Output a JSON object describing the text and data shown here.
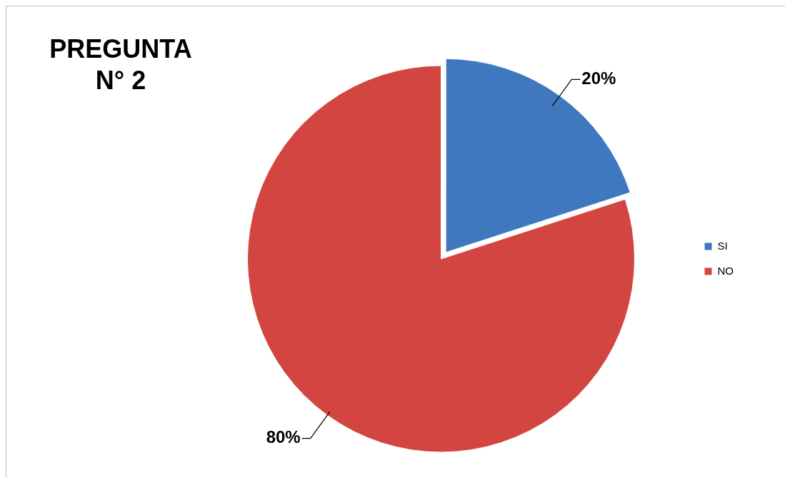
{
  "chart_data": {
    "type": "pie",
    "title": "PREGUNTA N° 2",
    "categories": [
      "SI",
      "NO"
    ],
    "values": [
      20,
      80
    ],
    "colors": [
      "#4078c0",
      "#d24540"
    ],
    "legend": "right",
    "value_labels": [
      "20%",
      "80%"
    ]
  }
}
